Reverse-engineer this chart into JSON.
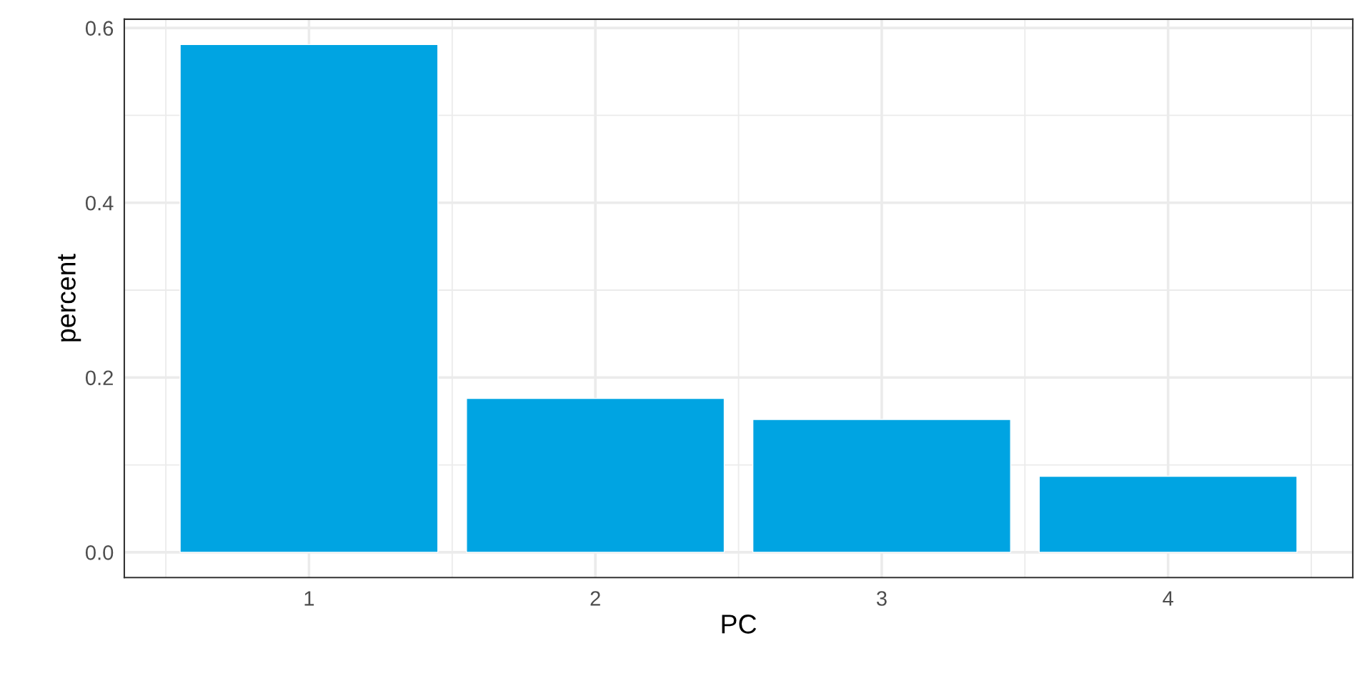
{
  "chart_data": {
    "type": "bar",
    "xlabel": "PC",
    "ylabel": "percent",
    "x": [
      1,
      2,
      3,
      4
    ],
    "values": [
      0.581,
      0.176,
      0.152,
      0.087
    ],
    "color": "#00a4e2",
    "xlim": [
      0.355,
      4.645
    ],
    "xticks": [
      1,
      2,
      3,
      4
    ],
    "ylim": [
      -0.029,
      0.61
    ],
    "yticks": [
      {
        "value": 0,
        "label": "0.0"
      },
      {
        "value": 0.2,
        "label": "0.2"
      },
      {
        "value": 0.4,
        "label": "0.4"
      },
      {
        "value": 0.6,
        "label": "0.6"
      }
    ],
    "grid": true
  }
}
